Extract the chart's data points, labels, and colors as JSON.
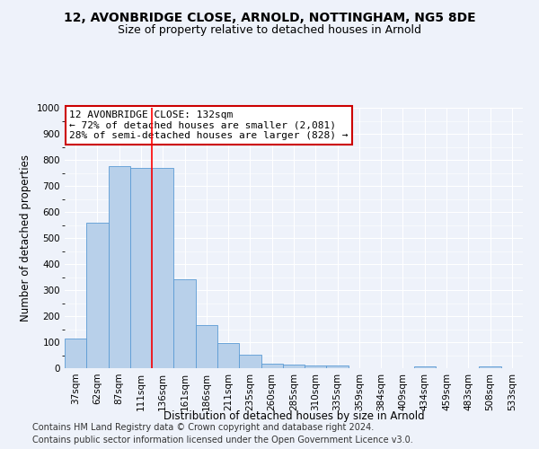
{
  "title": "12, AVONBRIDGE CLOSE, ARNOLD, NOTTINGHAM, NG5 8DE",
  "subtitle": "Size of property relative to detached houses in Arnold",
  "xlabel": "Distribution of detached houses by size in Arnold",
  "ylabel": "Number of detached properties",
  "categories": [
    "37sqm",
    "62sqm",
    "87sqm",
    "111sqm",
    "136sqm",
    "161sqm",
    "186sqm",
    "211sqm",
    "235sqm",
    "260sqm",
    "285sqm",
    "310sqm",
    "335sqm",
    "359sqm",
    "384sqm",
    "409sqm",
    "434sqm",
    "459sqm",
    "483sqm",
    "508sqm",
    "533sqm"
  ],
  "values": [
    113,
    557,
    775,
    770,
    770,
    343,
    165,
    98,
    52,
    18,
    13,
    12,
    10,
    0,
    0,
    0,
    8,
    0,
    0,
    8,
    0
  ],
  "bar_color": "#b8d0ea",
  "bar_edge_color": "#5b9bd5",
  "red_line_index": 3.5,
  "annotation_text": "12 AVONBRIDGE CLOSE: 132sqm\n← 72% of detached houses are smaller (2,081)\n28% of semi-detached houses are larger (828) →",
  "annotation_box_color": "#ffffff",
  "annotation_box_edge": "#cc0000",
  "footer_line1": "Contains HM Land Registry data © Crown copyright and database right 2024.",
  "footer_line2": "Contains public sector information licensed under the Open Government Licence v3.0.",
  "ylim": [
    0,
    1000
  ],
  "yticks": [
    0,
    100,
    200,
    300,
    400,
    500,
    600,
    700,
    800,
    900,
    1000
  ],
  "background_color": "#eef2fa",
  "grid_color": "#ffffff",
  "title_fontsize": 10,
  "subtitle_fontsize": 9,
  "axis_label_fontsize": 8.5,
  "tick_fontsize": 7.5,
  "annotation_fontsize": 8,
  "footer_fontsize": 7
}
